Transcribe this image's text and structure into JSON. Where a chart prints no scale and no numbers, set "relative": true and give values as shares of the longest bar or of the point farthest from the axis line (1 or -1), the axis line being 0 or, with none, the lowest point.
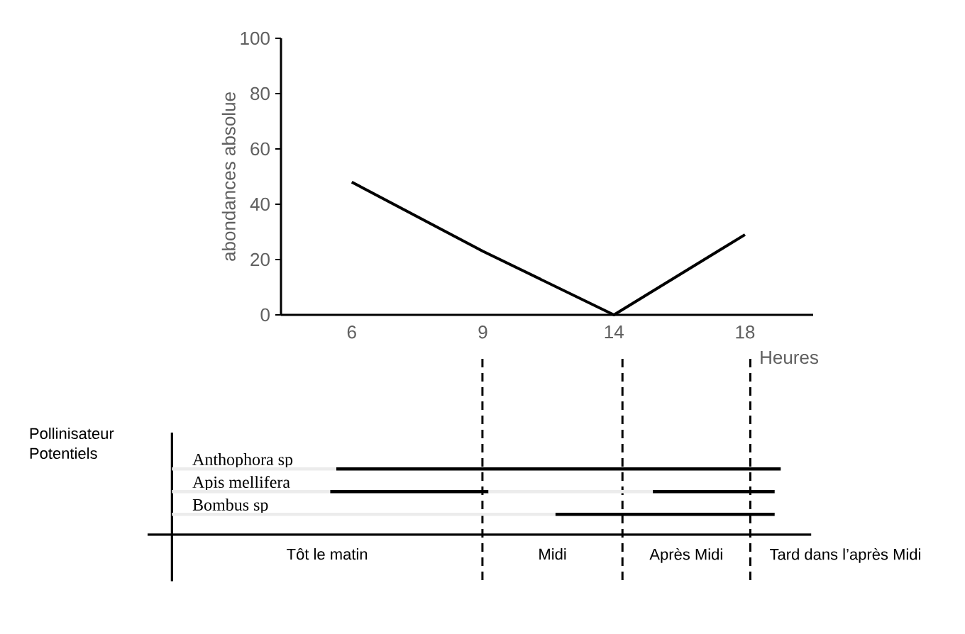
{
  "chart_data": [
    {
      "type": "line",
      "categories": [
        "6",
        "9",
        "14",
        "18"
      ],
      "values": [
        48,
        23,
        0,
        29
      ],
      "color": "#000000",
      "ylim": [
        0,
        100
      ],
      "yticks": [
        0,
        20,
        40,
        60,
        80,
        100
      ],
      "xlabel": "Heures",
      "ylabel": "abondances absolue"
    },
    {
      "type": "bar",
      "orientation": "horizontal",
      "relative": true,
      "stacked": true,
      "categories": [
        "Anthophora sp",
        "Apis mellifera",
        "Bombus sp"
      ],
      "ylabel": "Pollinisateur Potentiels",
      "series": [
        {
          "color": "#ececec",
          "values": [
            0.27,
            0.26,
            0.63
          ]
        },
        {
          "color": "#000000",
          "values": [
            0.73,
            0.26,
            0.36
          ]
        },
        {
          "color": "#ececec",
          "values": [
            null,
            0.27,
            null
          ]
        },
        {
          "color": "#000000",
          "values": [
            null,
            0.2,
            null
          ]
        }
      ],
      "ref_lines": [
        {
          "axis": "x",
          "value": 0.51,
          "line_style": "dashed",
          "color": "#000000"
        },
        {
          "axis": "x",
          "value": 0.74,
          "line_style": "dashed",
          "color": "#000000"
        },
        {
          "axis": "x",
          "value": 0.95,
          "line_style": "dashed",
          "color": "#000000"
        }
      ],
      "annotations": [
        "Tôt le matin",
        "Midi",
        "Après Midi",
        "Tard dans l’après Midi"
      ]
    }
  ]
}
